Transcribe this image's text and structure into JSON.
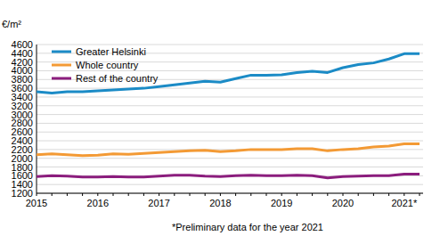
{
  "chart_data": {
    "type": "line",
    "y_label": "€/m²",
    "caption": "*Preliminary data for the year 2021",
    "categories": [
      "2015",
      null,
      null,
      null,
      "2016",
      null,
      null,
      null,
      "2017",
      null,
      null,
      null,
      "2018",
      null,
      null,
      null,
      "2019",
      null,
      null,
      null,
      "2020",
      null,
      null,
      null,
      "2021*",
      null
    ],
    "series": [
      {
        "name": "Greater Helsinki",
        "color": "#1b8bc6",
        "values": [
          3520,
          3490,
          3520,
          3520,
          3540,
          3560,
          3580,
          3600,
          3640,
          3680,
          3720,
          3760,
          3740,
          3820,
          3900,
          3900,
          3910,
          3960,
          3990,
          3960,
          4070,
          4140,
          4180,
          4270,
          4390,
          4390
        ]
      },
      {
        "name": "Whole country",
        "color": "#f39a35",
        "values": [
          2080,
          2100,
          2080,
          2060,
          2070,
          2100,
          2090,
          2110,
          2130,
          2150,
          2170,
          2180,
          2150,
          2170,
          2200,
          2200,
          2200,
          2220,
          2220,
          2170,
          2200,
          2220,
          2260,
          2280,
          2330,
          2330
        ]
      },
      {
        "name": "Rest of the country",
        "color": "#8b1d7d",
        "values": [
          1580,
          1600,
          1590,
          1570,
          1570,
          1580,
          1570,
          1570,
          1590,
          1610,
          1610,
          1590,
          1580,
          1600,
          1610,
          1600,
          1600,
          1610,
          1600,
          1550,
          1580,
          1590,
          1600,
          1600,
          1640,
          1640
        ]
      }
    ],
    "ylim": [
      1200,
      4600
    ],
    "yticks": [
      1200,
      1400,
      1600,
      1800,
      2000,
      2200,
      2400,
      2600,
      2800,
      3000,
      3200,
      3400,
      3600,
      3800,
      4000,
      4200,
      4400,
      4600
    ],
    "grid": true,
    "legend": "upper left"
  }
}
